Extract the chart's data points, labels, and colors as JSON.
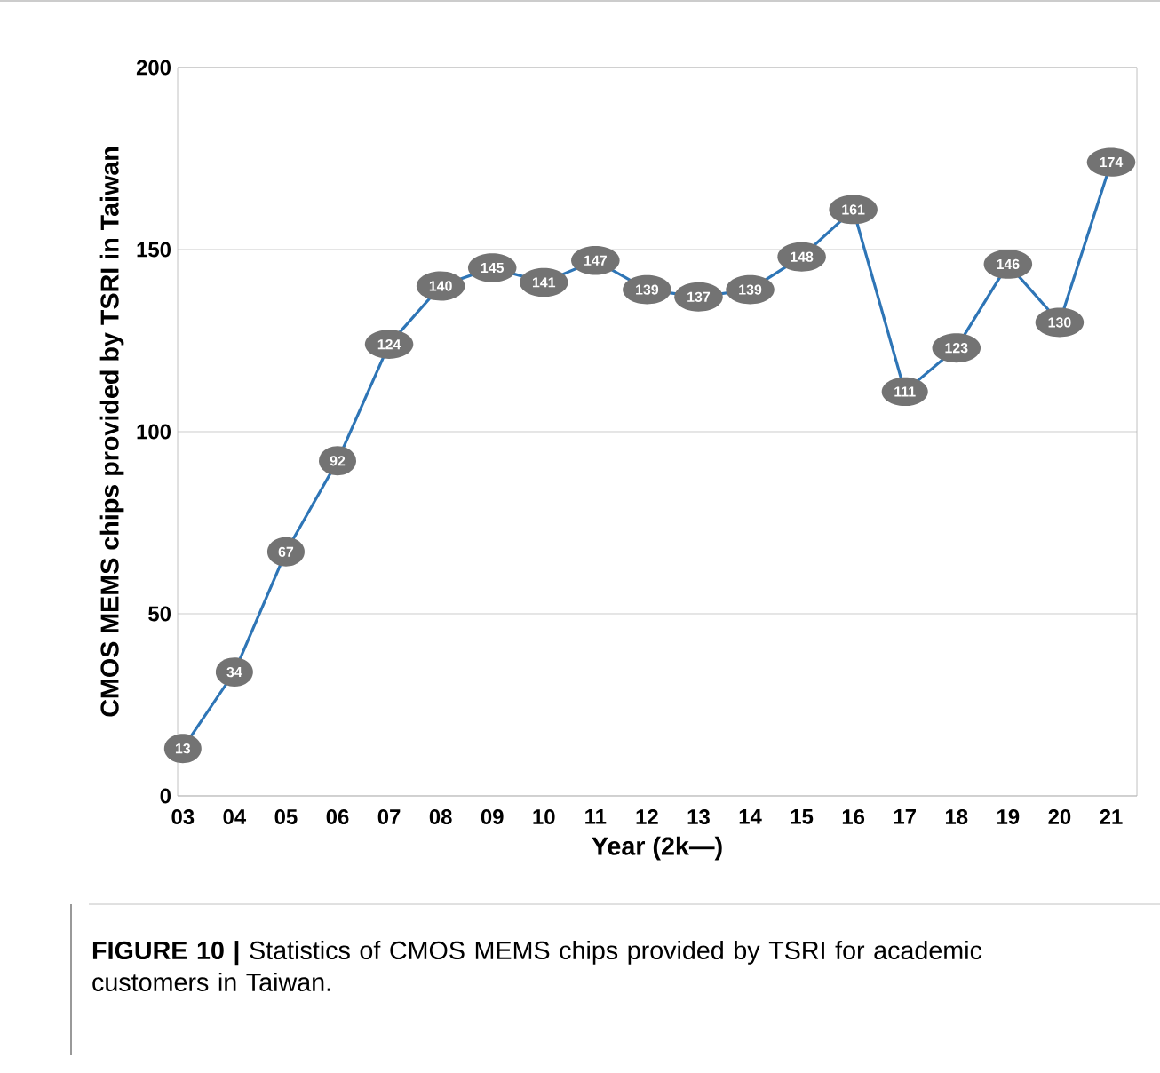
{
  "chart_data": {
    "type": "line",
    "xlabel": "Year (2k—)",
    "ylabel": "CMOS MEMS chips provided by TSRI in Taiwan",
    "categories": [
      "03",
      "04",
      "05",
      "06",
      "07",
      "08",
      "09",
      "10",
      "11",
      "12",
      "13",
      "14",
      "15",
      "16",
      "17",
      "18",
      "19",
      "20",
      "21"
    ],
    "values": [
      13,
      34,
      67,
      92,
      124,
      140,
      145,
      141,
      147,
      139,
      137,
      139,
      148,
      161,
      111,
      123,
      146,
      130,
      174
    ],
    "color": "#2e75b6",
    "ylim": [
      0,
      200
    ],
    "yticks": [
      0,
      50,
      100,
      150,
      200
    ],
    "grid": "y",
    "data_labels": true,
    "marker": "circle",
    "line_style": "solid",
    "annotations": [
      "**FIGURE 10 |** Statistics of CMOS MEMS chips provided by TSRI for academic customers in Taiwan."
    ]
  }
}
